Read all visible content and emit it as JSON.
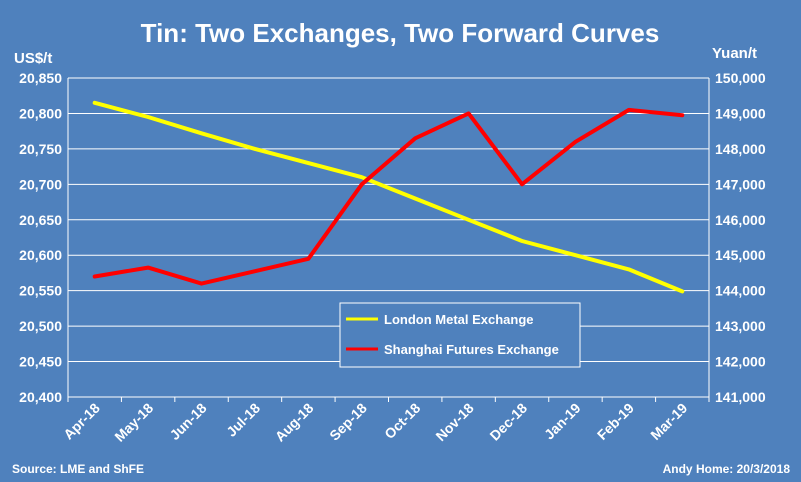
{
  "chart_data": {
    "type": "line",
    "title": "Tin: Two Exchanges, Two Forward Curves",
    "y_left_label": "US$/t",
    "y_right_label": "Yuan/t",
    "categories": [
      "Apr-18",
      "May-18",
      "Jun-18",
      "Jul-18",
      "Aug-18",
      "Sep-18",
      "Oct-18",
      "Nov-18",
      "Dec-18",
      "Jan-19",
      "Feb-19",
      "Mar-19"
    ],
    "y_left_ticks": [
      "20,400",
      "20,450",
      "20,500",
      "20,550",
      "20,600",
      "20,650",
      "20,700",
      "20,750",
      "20,800",
      "20,850"
    ],
    "y_right_ticks": [
      "141,000",
      "142,000",
      "143,000",
      "144,000",
      "145,000",
      "146,000",
      "147,000",
      "148,000",
      "149,000",
      "150,000"
    ],
    "y_left_range": [
      20400,
      20850
    ],
    "y_right_range": [
      141000,
      150000
    ],
    "grid": true,
    "legend_position": "bottom-center",
    "series": [
      {
        "name": "London Metal Exchange",
        "axis": "left",
        "color": "#ffff00",
        "values": [
          20815,
          20795,
          20772,
          20750,
          20730,
          20710,
          20680,
          20650,
          20620,
          20600,
          20580,
          20549
        ]
      },
      {
        "name": "Shanghai Futures Exchange",
        "axis": "right",
        "color": "#ff0000",
        "values": [
          144400,
          144650,
          144200,
          144550,
          144900,
          147000,
          148300,
          149000,
          147000,
          148200,
          149100,
          148950
        ]
      }
    ],
    "source": "Source: LME and ShFE",
    "credit": "Andy Home: 20/3/2018"
  }
}
